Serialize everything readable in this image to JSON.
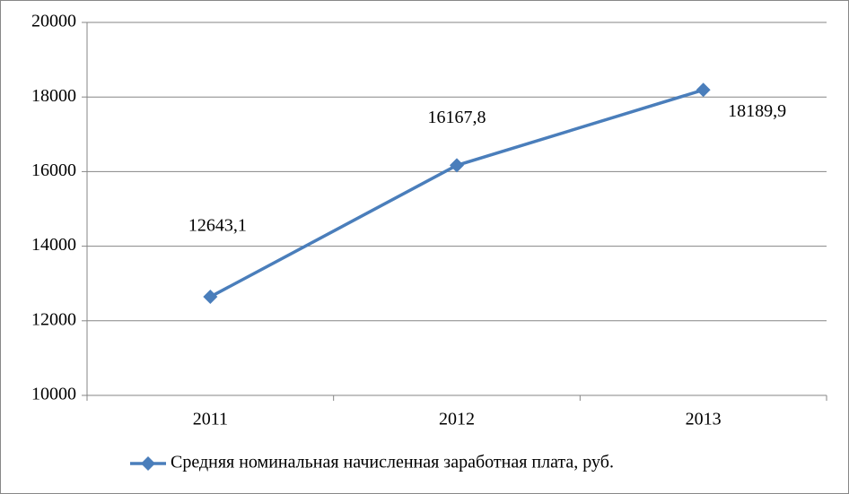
{
  "chart_data": {
    "type": "line",
    "categories": [
      "2011",
      "2012",
      "2013"
    ],
    "series": [
      {
        "name": "Средняя номинальная начисленная заработная плата, руб.",
        "color": "#4a7ebb",
        "values": [
          12643.1,
          16167.8,
          18189.9
        ],
        "value_labels": [
          "12643,1",
          "16167,8",
          "18189,9"
        ]
      }
    ],
    "ylim": [
      10000,
      20000
    ],
    "yticks": [
      10000,
      12000,
      14000,
      16000,
      18000,
      20000
    ],
    "grid": true,
    "legend": "bottom"
  }
}
